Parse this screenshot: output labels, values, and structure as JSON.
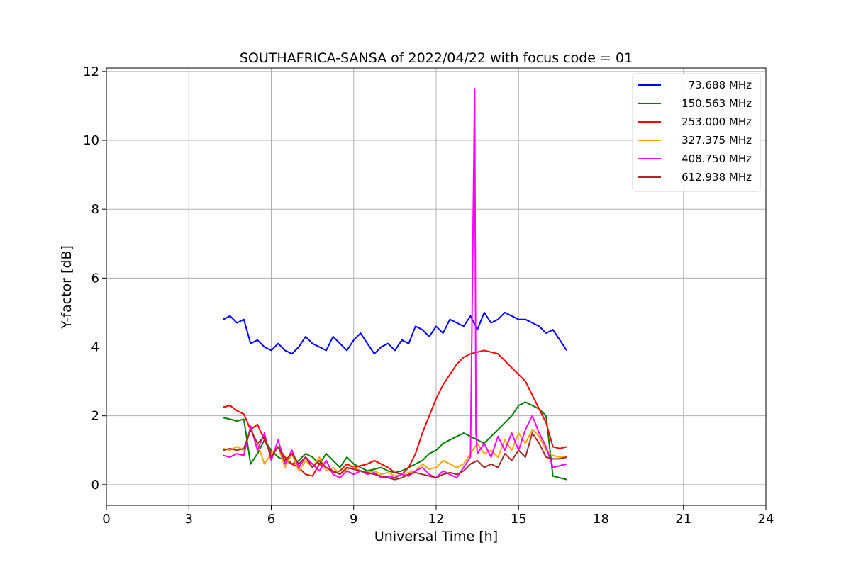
{
  "chart_data": {
    "type": "line",
    "title": "SOUTHAFRICA-SANSA of 2022/04/22 with focus code = 01",
    "xlabel": "Universal Time [h]",
    "ylabel": "Y-factor [dB]",
    "xlim": [
      0,
      24
    ],
    "ylim": [
      -0.6,
      12.1
    ],
    "xticks": [
      0,
      3,
      6,
      9,
      12,
      15,
      18,
      21,
      24
    ],
    "xtick_labels": [
      "0",
      "3",
      "6",
      "9",
      "12",
      "15",
      "18",
      "21",
      "24"
    ],
    "yticks": [
      0,
      2,
      4,
      6,
      8,
      10,
      12
    ],
    "ytick_labels": [
      "0",
      "2",
      "4",
      "6",
      "8",
      "10",
      "12"
    ],
    "grid": true,
    "legend_position": "top-right",
    "series": [
      {
        "name": "73.688 MHz",
        "color": "#0000ff",
        "x": [
          4.25,
          4.5,
          4.75,
          5.0,
          5.25,
          5.5,
          5.75,
          6.0,
          6.25,
          6.5,
          6.75,
          7.0,
          7.25,
          7.5,
          7.75,
          8.0,
          8.25,
          8.5,
          8.75,
          9.0,
          9.25,
          9.5,
          9.75,
          10.0,
          10.25,
          10.5,
          10.75,
          11.0,
          11.25,
          11.5,
          11.75,
          12.0,
          12.25,
          12.5,
          12.75,
          13.0,
          13.25,
          13.5,
          13.75,
          14.0,
          14.25,
          14.5,
          14.75,
          15.0,
          15.25,
          15.5,
          15.75,
          16.0,
          16.25,
          16.5,
          16.75
        ],
        "y": [
          4.8,
          4.9,
          4.7,
          4.8,
          4.1,
          4.2,
          4.0,
          3.9,
          4.1,
          3.9,
          3.8,
          4.0,
          4.3,
          4.1,
          4.0,
          3.9,
          4.3,
          4.1,
          3.9,
          4.2,
          4.4,
          4.1,
          3.8,
          4.0,
          4.1,
          3.9,
          4.2,
          4.1,
          4.6,
          4.5,
          4.3,
          4.6,
          4.4,
          4.8,
          4.7,
          4.6,
          4.9,
          4.5,
          5.0,
          4.7,
          4.8,
          5.0,
          4.9,
          4.8,
          4.8,
          4.7,
          4.6,
          4.4,
          4.5,
          4.2,
          3.9
        ]
      },
      {
        "name": "150.563 MHz",
        "color": "#008000",
        "x": [
          4.25,
          4.5,
          4.75,
          5.0,
          5.25,
          5.5,
          5.75,
          6.0,
          6.25,
          6.5,
          6.75,
          7.0,
          7.25,
          7.5,
          7.75,
          8.0,
          8.25,
          8.5,
          8.75,
          9.0,
          9.25,
          9.5,
          9.75,
          10.0,
          10.25,
          10.5,
          10.75,
          11.0,
          11.25,
          11.5,
          11.75,
          12.0,
          12.25,
          12.5,
          12.75,
          13.0,
          13.25,
          13.5,
          13.75,
          14.0,
          14.25,
          14.5,
          14.75,
          15.0,
          15.25,
          15.5,
          15.75,
          16.0,
          16.25,
          16.5,
          16.75
        ],
        "y": [
          1.95,
          1.9,
          1.85,
          1.9,
          0.6,
          0.9,
          1.3,
          1.0,
          0.8,
          0.7,
          0.6,
          0.7,
          0.9,
          0.8,
          0.6,
          0.9,
          0.7,
          0.5,
          0.8,
          0.6,
          0.5,
          0.4,
          0.45,
          0.5,
          0.4,
          0.35,
          0.4,
          0.5,
          0.6,
          0.7,
          0.9,
          1.0,
          1.2,
          1.3,
          1.4,
          1.5,
          1.4,
          1.3,
          1.2,
          1.4,
          1.6,
          1.8,
          2.0,
          2.3,
          2.4,
          2.3,
          2.2,
          2.0,
          0.25,
          0.2,
          0.15
        ]
      },
      {
        "name": "253.000 MHz",
        "color": "#ff0000",
        "x": [
          4.25,
          4.5,
          4.75,
          5.0,
          5.25,
          5.5,
          5.75,
          6.0,
          6.25,
          6.5,
          6.75,
          7.0,
          7.25,
          7.5,
          7.75,
          8.0,
          8.25,
          8.5,
          8.75,
          9.0,
          9.25,
          9.5,
          9.75,
          10.0,
          10.25,
          10.5,
          10.75,
          11.0,
          11.25,
          11.5,
          11.75,
          12.0,
          12.25,
          12.5,
          12.75,
          13.0,
          13.25,
          13.5,
          13.75,
          14.0,
          14.25,
          14.5,
          14.75,
          15.0,
          15.25,
          15.5,
          15.75,
          16.0,
          16.25,
          16.5,
          16.75
        ],
        "y": [
          2.25,
          2.3,
          2.15,
          2.05,
          1.6,
          1.75,
          1.3,
          0.9,
          1.1,
          0.8,
          0.6,
          0.5,
          0.3,
          0.25,
          0.6,
          0.5,
          0.35,
          0.4,
          0.6,
          0.5,
          0.55,
          0.6,
          0.7,
          0.6,
          0.5,
          0.35,
          0.3,
          0.5,
          0.9,
          1.5,
          2.0,
          2.5,
          2.9,
          3.2,
          3.5,
          3.7,
          3.8,
          3.85,
          3.9,
          3.85,
          3.8,
          3.6,
          3.4,
          3.2,
          3.0,
          2.6,
          2.2,
          1.8,
          1.1,
          1.05,
          1.1
        ]
      },
      {
        "name": "327.375 MHz",
        "color": "#ffa500",
        "x": [
          4.25,
          4.5,
          4.75,
          5.0,
          5.25,
          5.5,
          5.75,
          6.0,
          6.25,
          6.5,
          6.75,
          7.0,
          7.25,
          7.5,
          7.75,
          8.0,
          8.25,
          8.5,
          8.75,
          9.0,
          9.25,
          9.5,
          9.75,
          10.0,
          10.25,
          10.5,
          10.75,
          11.0,
          11.25,
          11.5,
          11.75,
          12.0,
          12.25,
          12.5,
          12.75,
          13.0,
          13.25,
          13.5,
          13.75,
          14.0,
          14.25,
          14.5,
          14.75,
          15.0,
          15.25,
          15.5,
          15.75,
          16.0,
          16.25,
          16.5,
          16.75
        ],
        "y": [
          1.05,
          1.0,
          1.1,
          1.0,
          1.6,
          1.2,
          0.6,
          0.9,
          1.1,
          0.5,
          0.9,
          0.4,
          0.7,
          0.5,
          0.8,
          0.4,
          0.5,
          0.3,
          0.45,
          0.5,
          0.4,
          0.35,
          0.4,
          0.3,
          0.35,
          0.25,
          0.3,
          0.35,
          0.4,
          0.6,
          0.45,
          0.5,
          0.7,
          0.6,
          0.5,
          0.6,
          0.9,
          1.2,
          0.9,
          1.0,
          0.8,
          1.3,
          1.0,
          1.5,
          1.2,
          1.6,
          1.4,
          1.0,
          0.85,
          0.8,
          0.8
        ]
      },
      {
        "name": "408.750 MHz",
        "color": "#ff00ff",
        "x": [
          4.25,
          4.5,
          4.75,
          5.0,
          5.25,
          5.5,
          5.75,
          6.0,
          6.25,
          6.5,
          6.75,
          7.0,
          7.25,
          7.5,
          7.75,
          8.0,
          8.25,
          8.5,
          8.75,
          9.0,
          9.25,
          9.5,
          9.75,
          10.0,
          10.25,
          10.5,
          10.75,
          11.0,
          11.25,
          11.5,
          11.75,
          12.0,
          12.25,
          12.5,
          12.75,
          13.0,
          13.25,
          13.4,
          13.45,
          13.5,
          13.75,
          14.0,
          14.25,
          14.5,
          14.75,
          15.0,
          15.25,
          15.5,
          15.75,
          16.0,
          16.25,
          16.5,
          16.75
        ],
        "y": [
          0.85,
          0.8,
          0.9,
          0.85,
          1.7,
          1.0,
          1.5,
          0.7,
          1.3,
          0.6,
          1.0,
          0.5,
          0.8,
          0.6,
          0.4,
          0.7,
          0.3,
          0.2,
          0.4,
          0.3,
          0.4,
          0.3,
          0.35,
          0.2,
          0.25,
          0.2,
          0.3,
          0.25,
          0.4,
          0.5,
          0.3,
          0.2,
          0.4,
          0.3,
          0.2,
          0.5,
          0.8,
          11.5,
          1.5,
          0.9,
          1.2,
          0.8,
          1.4,
          1.0,
          1.5,
          1.0,
          1.6,
          2.0,
          1.5,
          1.1,
          0.5,
          0.55,
          0.6
        ]
      },
      {
        "name": "612.938 MHz",
        "color": "#a52a2a",
        "x": [
          4.25,
          4.5,
          4.75,
          5.0,
          5.25,
          5.5,
          5.75,
          6.0,
          6.25,
          6.5,
          6.75,
          7.0,
          7.25,
          7.5,
          7.75,
          8.0,
          8.25,
          8.5,
          8.75,
          9.0,
          9.25,
          9.5,
          9.75,
          10.0,
          10.25,
          10.5,
          10.75,
          11.0,
          11.25,
          11.5,
          11.75,
          12.0,
          12.25,
          12.5,
          12.75,
          13.0,
          13.25,
          13.5,
          13.75,
          14.0,
          14.25,
          14.5,
          14.75,
          15.0,
          15.25,
          15.5,
          15.75,
          16.0,
          16.25,
          16.5,
          16.75
        ],
        "y": [
          1.0,
          1.05,
          1.0,
          1.05,
          1.6,
          1.2,
          1.4,
          0.8,
          1.1,
          0.7,
          0.9,
          0.6,
          0.8,
          0.5,
          0.7,
          0.5,
          0.4,
          0.3,
          0.5,
          0.45,
          0.4,
          0.35,
          0.3,
          0.25,
          0.2,
          0.15,
          0.2,
          0.3,
          0.35,
          0.3,
          0.25,
          0.2,
          0.3,
          0.35,
          0.3,
          0.4,
          0.6,
          0.7,
          0.5,
          0.6,
          0.5,
          0.9,
          0.7,
          1.0,
          0.8,
          1.5,
          1.2,
          0.8,
          0.75,
          0.75,
          0.8
        ]
      }
    ]
  }
}
